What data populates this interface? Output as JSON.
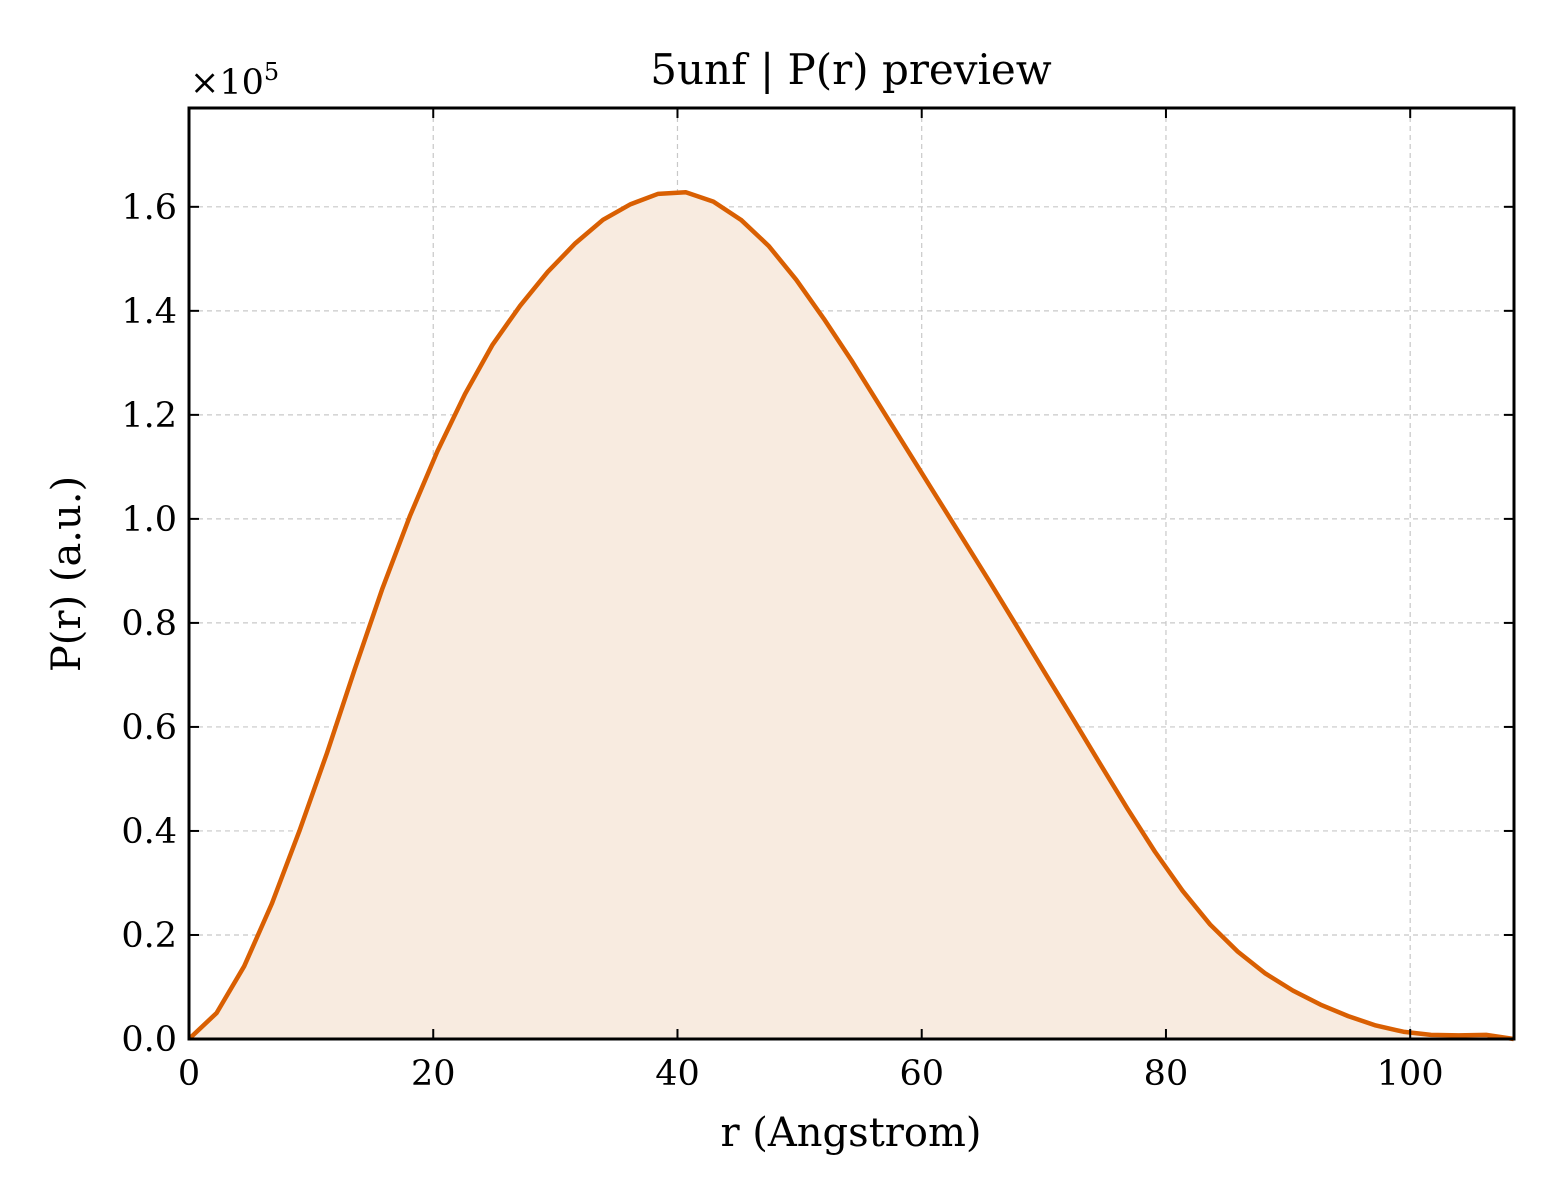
{
  "chart_data": {
    "type": "area",
    "title": "5unf | P(r) preview",
    "xlabel": "r (Angstrom)",
    "ylabel": "P(r) (a.u.)",
    "y_offset_text": "×10",
    "y_offset_exp": "5",
    "xlim": [
      0,
      108.5
    ],
    "ylim": [
      0,
      1.79
    ],
    "x_ticks": [
      0,
      20,
      40,
      60,
      80,
      100
    ],
    "x_tick_labels": [
      "0",
      "20",
      "40",
      "60",
      "80",
      "100"
    ],
    "y_ticks": [
      0.0,
      0.2,
      0.4,
      0.6,
      0.8,
      1.0,
      1.2,
      1.4,
      1.6
    ],
    "y_tick_labels": [
      "0.0",
      "0.2",
      "0.4",
      "0.6",
      "0.8",
      "1.0",
      "1.2",
      "1.4",
      "1.6"
    ],
    "grid": true,
    "legend": "none",
    "line_color": "#d95f02",
    "fill_color": "#f8ebe0",
    "series": [
      {
        "x": [
          0,
          2.26,
          4.52,
          6.78,
          9.04,
          11.3,
          13.56,
          15.82,
          18.08,
          20.34,
          22.6,
          24.86,
          27.12,
          29.38,
          31.64,
          33.9,
          36.16,
          38.42,
          40.68,
          42.94,
          45.2,
          47.46,
          49.72,
          51.98,
          54.24,
          56.5,
          58.76,
          61.02,
          63.28,
          65.54,
          67.8,
          70.06,
          72.32,
          74.58,
          76.84,
          79.1,
          81.36,
          83.62,
          85.88,
          88.14,
          90.4,
          92.66,
          94.92,
          97.18,
          99.44,
          101.7,
          103.96,
          106.22,
          108.48
        ],
        "values": [
          0.0,
          0.05,
          0.14,
          0.26,
          0.4,
          0.55,
          0.71,
          0.865,
          1.005,
          1.13,
          1.24,
          1.335,
          1.41,
          1.475,
          1.53,
          1.575,
          1.605,
          1.625,
          1.628,
          1.61,
          1.575,
          1.525,
          1.46,
          1.385,
          1.305,
          1.22,
          1.135,
          1.05,
          0.965,
          0.88,
          0.793,
          0.705,
          0.618,
          0.53,
          0.443,
          0.36,
          0.285,
          0.22,
          0.168,
          0.126,
          0.093,
          0.066,
          0.044,
          0.026,
          0.014,
          0.008,
          0.007,
          0.008,
          0.0
        ]
      }
    ]
  }
}
